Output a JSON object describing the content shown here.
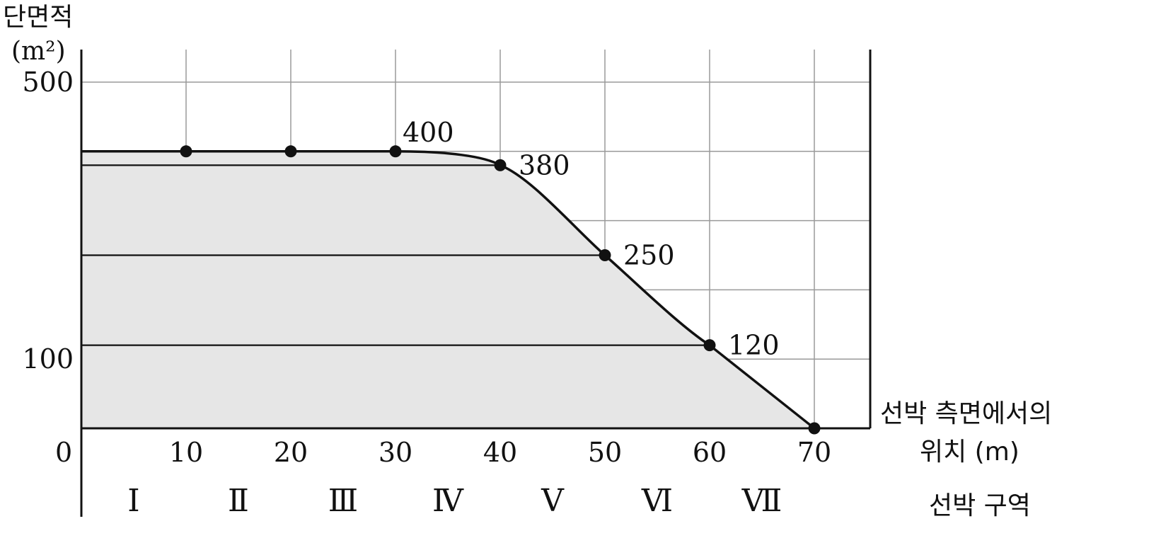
{
  "chart_data": {
    "type": "area",
    "ylabel": "단면적",
    "yunit": "(m²)",
    "xlabel_line1": "선박 측면에서의",
    "xlabel_line2": "위치 (m)",
    "zone_label": "선박 구역",
    "origin_label": "0",
    "x_ticks": [
      "10",
      "20",
      "30",
      "40",
      "50",
      "60",
      "70"
    ],
    "y_ticks": [
      {
        "value": 500,
        "label": "500"
      },
      {
        "value": 100,
        "label": "100"
      }
    ],
    "xlim": [
      0,
      75
    ],
    "ylim": [
      0,
      550
    ],
    "grid": true,
    "x": [
      0,
      10,
      20,
      30,
      40,
      50,
      60,
      70
    ],
    "y": [
      400,
      400,
      400,
      400,
      380,
      250,
      120,
      0
    ],
    "markers": [
      {
        "x": 10,
        "y": 400
      },
      {
        "x": 20,
        "y": 400
      },
      {
        "x": 30,
        "y": 400
      },
      {
        "x": 40,
        "y": 380
      },
      {
        "x": 50,
        "y": 250
      },
      {
        "x": 60,
        "y": 120
      },
      {
        "x": 70,
        "y": 0
      }
    ],
    "data_labels": [
      {
        "x": 30,
        "y": 400,
        "text": "400"
      },
      {
        "x": 40,
        "y": 380,
        "text": "380"
      },
      {
        "x": 50,
        "y": 250,
        "text": "250"
      },
      {
        "x": 60,
        "y": 120,
        "text": "120"
      }
    ],
    "reference_lines": [
      380,
      250,
      120
    ],
    "zones": [
      "Ⅰ",
      "Ⅱ",
      "Ⅲ",
      "Ⅳ",
      "Ⅴ",
      "Ⅵ",
      "Ⅶ"
    ]
  }
}
